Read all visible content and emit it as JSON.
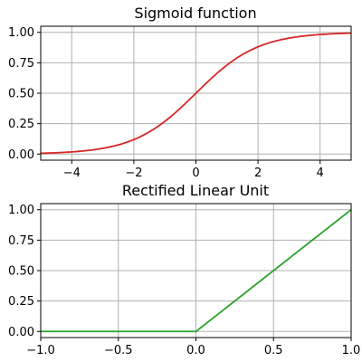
{
  "chart_data": [
    {
      "type": "line",
      "title": "Sigmoid function",
      "function": "sigmoid",
      "xlim": [
        -5,
        5
      ],
      "ylim": [
        -0.05,
        1.05
      ],
      "xticks": [
        -4,
        -2,
        0,
        2,
        4
      ],
      "yticks": [
        0.0,
        0.25,
        0.5,
        0.75,
        1.0
      ],
      "xtick_labels": [
        "−4",
        "−2",
        "0",
        "2",
        "4"
      ],
      "ytick_labels": [
        "0.00",
        "0.25",
        "0.50",
        "0.75",
        "1.00"
      ],
      "grid": true,
      "series": [
        {
          "color": "#d62728",
          "x": [
            -5,
            -4,
            -3,
            -2,
            -1,
            0,
            1,
            2,
            3,
            4,
            5
          ],
          "y": [
            0.0067,
            0.018,
            0.0474,
            0.1192,
            0.2689,
            0.5,
            0.7311,
            0.8808,
            0.9526,
            0.982,
            0.9933
          ]
        }
      ]
    },
    {
      "type": "line",
      "title": "Rectified Linear Unit",
      "function": "relu",
      "xlim": [
        -1.0,
        1.0
      ],
      "ylim": [
        -0.05,
        1.05
      ],
      "xticks": [
        -1.0,
        -0.5,
        0.0,
        0.5,
        1.0
      ],
      "yticks": [
        0.0,
        0.25,
        0.5,
        0.75,
        1.0
      ],
      "xtick_labels": [
        "−1.0",
        "−0.5",
        "0.0",
        "0.5",
        "1.0"
      ],
      "ytick_labels": [
        "0.00",
        "0.25",
        "0.50",
        "0.75",
        "1.00"
      ],
      "grid": true,
      "series": [
        {
          "color": "#2ca02c",
          "x": [
            -1.0,
            0.0,
            1.0
          ],
          "y": [
            0.0,
            0.0,
            1.0
          ]
        }
      ]
    }
  ]
}
